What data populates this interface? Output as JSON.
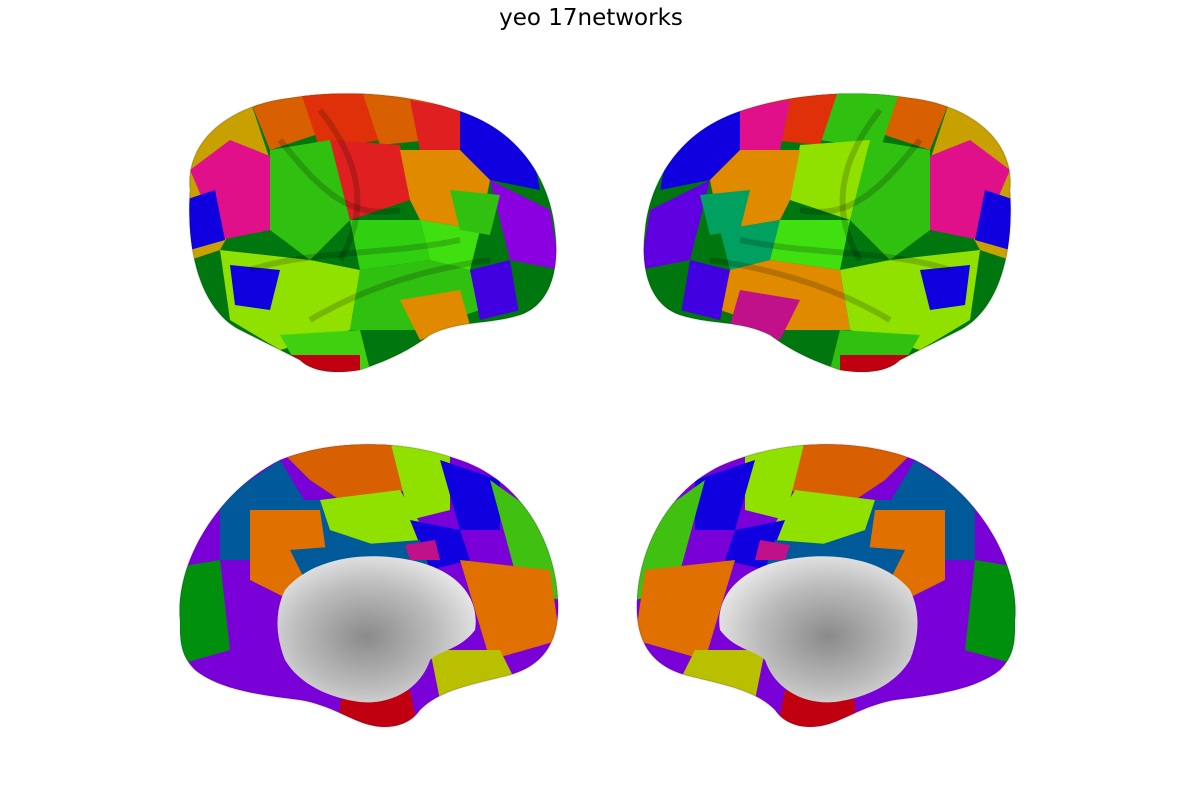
{
  "figure": {
    "title": "yeo 17networks"
  },
  "network_colors": {
    "visual_central": "#781286",
    "visual_peripheral": "#ff0000",
    "somatomotor_a": "#4682b4",
    "somatomotor_b": "#2acca4",
    "dorsal_attention_a": "#4a9b3c",
    "dorsal_attention_b": "#00760e",
    "salience_a": "#c43afa",
    "salience_b": "#ff98d5",
    "limbic_a": "#dcf8a4",
    "limbic_b": "#7a8732",
    "control_a": "#778cb0",
    "control_b": "#e69422",
    "control_c": "#871f4e",
    "default_a": "#0c30ff",
    "default_b": "#000082",
    "default_c": "#ffff00",
    "default_d": "#cd3e4e",
    "medial_wall": "#bdbdbd"
  },
  "views": [
    {
      "id": "lh-lateral",
      "hemisphere": "left",
      "view": "lateral"
    },
    {
      "id": "rh-lateral",
      "hemisphere": "right",
      "view": "lateral"
    },
    {
      "id": "lh-medial",
      "hemisphere": "left",
      "view": "medial"
    },
    {
      "id": "rh-medial",
      "hemisphere": "right",
      "view": "medial"
    }
  ]
}
